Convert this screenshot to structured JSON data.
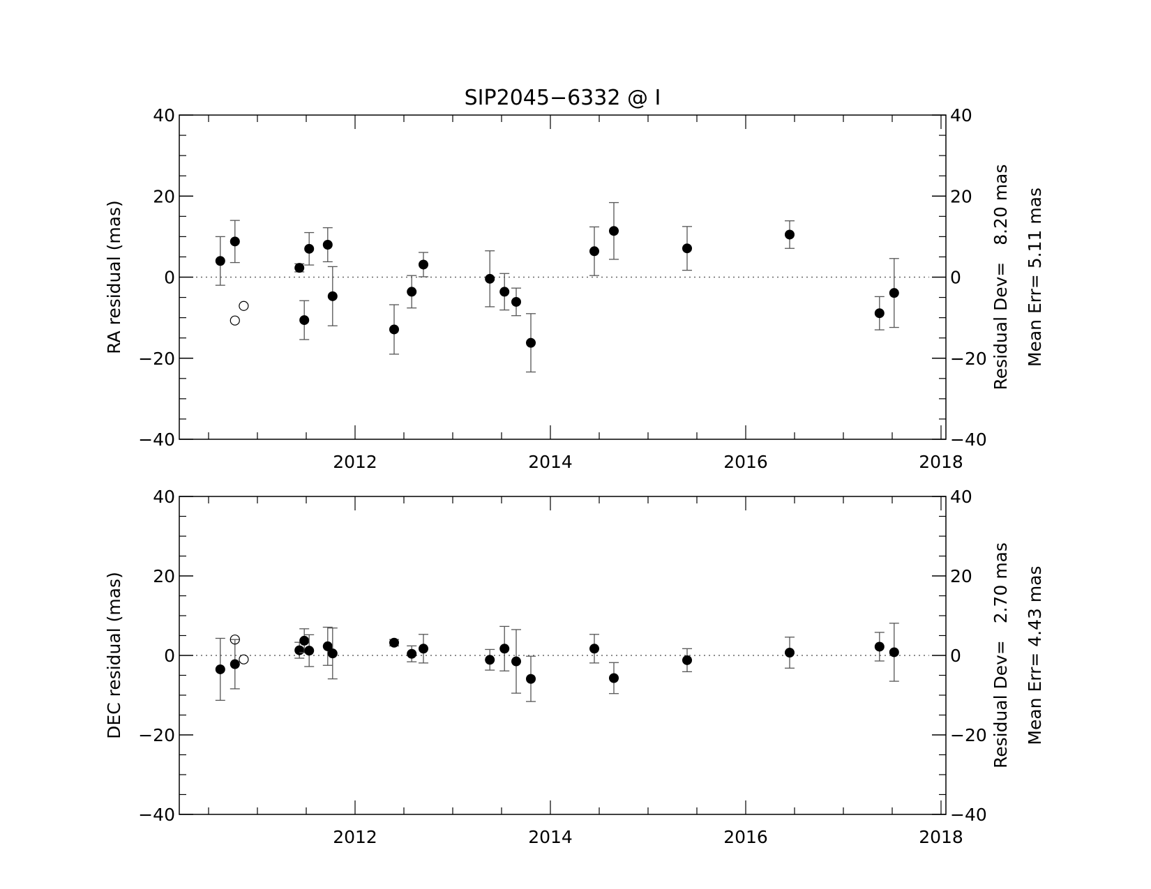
{
  "chart_data": [
    {
      "type": "scatter",
      "title": "SIP2045−6332 @ I",
      "ylabel": "RA residual (mas)",
      "xlim": [
        2010.2,
        2018.05
      ],
      "ylim": [
        -40,
        40
      ],
      "xticks": [
        "2012",
        "2014",
        "2016",
        "2018"
      ],
      "xtick_values": [
        2012,
        2014,
        2016,
        2018
      ],
      "yticks": [
        "−40",
        "−20",
        "0",
        "20",
        "40"
      ],
      "ytick_values": [
        -40,
        -20,
        0,
        20,
        40
      ],
      "reference_line": 0,
      "stats": [
        "Residual Dev=   8.20 mas",
        "Mean Err= 5.11 mas"
      ],
      "series": [
        {
          "marker": "filled",
          "points": [
            {
              "x": 2010.62,
              "y": 4.0,
              "err": 6.0
            },
            {
              "x": 2010.77,
              "y": 8.8,
              "err": 5.2
            },
            {
              "x": 2011.43,
              "y": 2.3,
              "err": 1.0
            },
            {
              "x": 2011.48,
              "y": -10.6,
              "err": 4.8
            },
            {
              "x": 2011.53,
              "y": 7.0,
              "err": 4.0
            },
            {
              "x": 2011.72,
              "y": 8.0,
              "err": 4.2
            },
            {
              "x": 2011.77,
              "y": -4.7,
              "err": 7.3
            },
            {
              "x": 2012.4,
              "y": -12.9,
              "err": 6.1
            },
            {
              "x": 2012.58,
              "y": -3.6,
              "err": 4.0
            },
            {
              "x": 2012.7,
              "y": 3.1,
              "err": 3.0
            },
            {
              "x": 2013.38,
              "y": -0.4,
              "err": 6.9
            },
            {
              "x": 2013.53,
              "y": -3.6,
              "err": 4.5
            },
            {
              "x": 2013.65,
              "y": -6.1,
              "err": 3.4
            },
            {
              "x": 2013.8,
              "y": -16.2,
              "err": 7.2
            },
            {
              "x": 2014.45,
              "y": 6.4,
              "err": 6.0
            },
            {
              "x": 2014.65,
              "y": 11.4,
              "err": 7.0
            },
            {
              "x": 2015.4,
              "y": 7.1,
              "err": 5.4
            },
            {
              "x": 2016.45,
              "y": 10.5,
              "err": 3.4
            },
            {
              "x": 2017.37,
              "y": -8.9,
              "err": 4.1
            },
            {
              "x": 2017.52,
              "y": -3.9,
              "err": 8.5
            }
          ]
        },
        {
          "marker": "open",
          "points": [
            {
              "x": 2010.77,
              "y": -10.7
            },
            {
              "x": 2010.86,
              "y": -7.1
            }
          ]
        }
      ]
    },
    {
      "type": "scatter",
      "ylabel": "DEC residual (mas)",
      "xlim": [
        2010.2,
        2018.05
      ],
      "ylim": [
        -40,
        40
      ],
      "xticks": [
        "2012",
        "2014",
        "2016",
        "2018"
      ],
      "xtick_values": [
        2012,
        2014,
        2016,
        2018
      ],
      "yticks": [
        "−40",
        "−20",
        "0",
        "20",
        "40"
      ],
      "ytick_values": [
        -40,
        -20,
        0,
        20,
        40
      ],
      "reference_line": 0,
      "stats": [
        "Residual Dev=   2.70 mas",
        "Mean Err= 4.43 mas"
      ],
      "series": [
        {
          "marker": "filled",
          "points": [
            {
              "x": 2010.62,
              "y": -3.5,
              "err": 7.8
            },
            {
              "x": 2010.77,
              "y": -2.2,
              "err": 6.2
            },
            {
              "x": 2011.43,
              "y": 1.3,
              "err": 2.0
            },
            {
              "x": 2011.48,
              "y": 3.7,
              "err": 3.0
            },
            {
              "x": 2011.53,
              "y": 1.2,
              "err": 4.0
            },
            {
              "x": 2011.72,
              "y": 2.3,
              "err": 4.8
            },
            {
              "x": 2011.77,
              "y": 0.5,
              "err": 6.4
            },
            {
              "x": 2012.4,
              "y": 3.2,
              "err": 0.8
            },
            {
              "x": 2012.58,
              "y": 0.4,
              "err": 2.0
            },
            {
              "x": 2012.7,
              "y": 1.7,
              "err": 3.6
            },
            {
              "x": 2013.38,
              "y": -1.1,
              "err": 2.6
            },
            {
              "x": 2013.53,
              "y": 1.7,
              "err": 5.6
            },
            {
              "x": 2013.65,
              "y": -1.5,
              "err": 8.0
            },
            {
              "x": 2013.8,
              "y": -5.9,
              "err": 5.7
            },
            {
              "x": 2014.45,
              "y": 1.7,
              "err": 3.6
            },
            {
              "x": 2014.65,
              "y": -5.7,
              "err": 3.9
            },
            {
              "x": 2015.4,
              "y": -1.2,
              "err": 2.9
            },
            {
              "x": 2016.45,
              "y": 0.7,
              "err": 3.9
            },
            {
              "x": 2017.37,
              "y": 2.2,
              "err": 3.6
            },
            {
              "x": 2017.52,
              "y": 0.8,
              "err": 7.3
            }
          ]
        },
        {
          "marker": "open",
          "points": [
            {
              "x": 2010.77,
              "y": 4.0
            },
            {
              "x": 2010.86,
              "y": -1.0
            }
          ]
        }
      ]
    }
  ]
}
